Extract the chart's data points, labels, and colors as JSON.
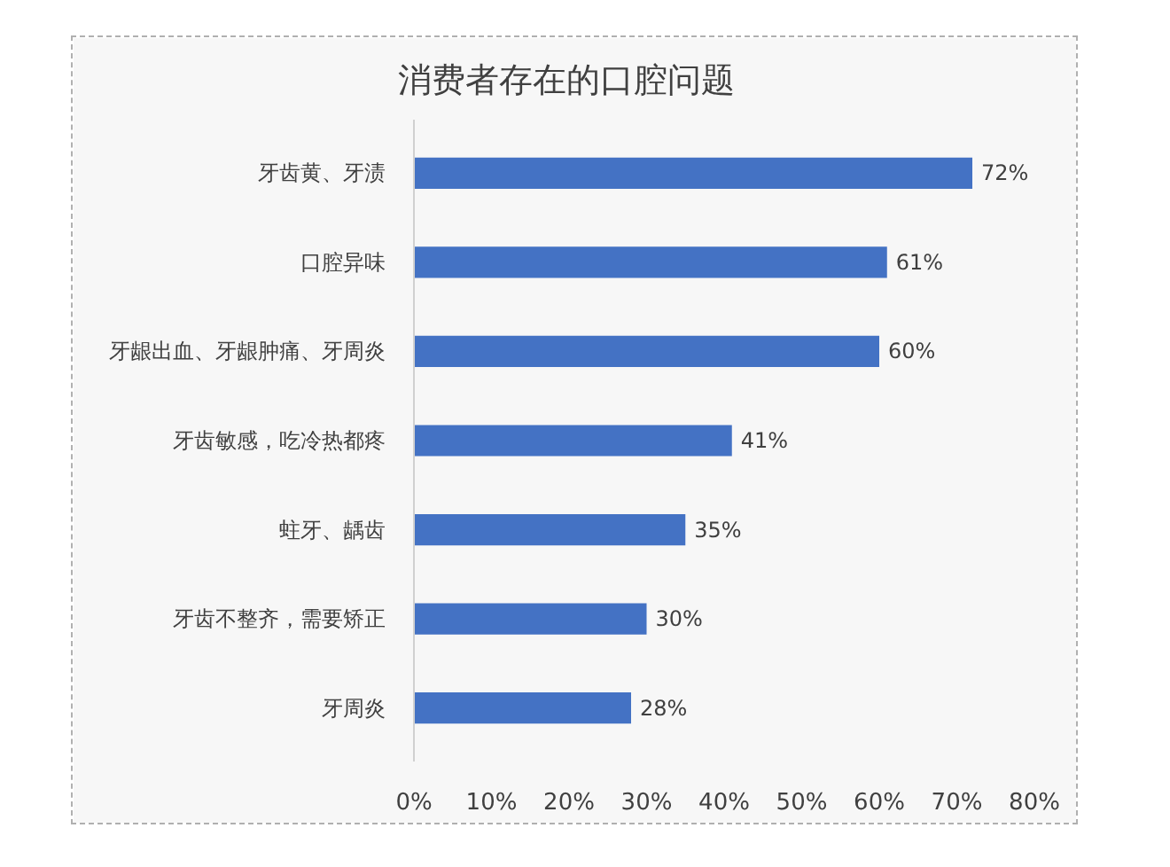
{
  "chart_data": {
    "type": "bar",
    "orientation": "horizontal",
    "title": "消费者存在的口腔问题",
    "categories": [
      "牙齿黄、牙渍",
      "口腔异味",
      "牙龈出血、牙龈肿痛、牙周炎",
      "牙齿敏感，吃冷热都疼",
      "蛀牙、龋齿",
      "牙齿不整齐，需要矫正",
      "牙周炎"
    ],
    "values": [
      72,
      61,
      60,
      41,
      35,
      30,
      28
    ],
    "value_labels": [
      "72%",
      "61%",
      "60%",
      "41%",
      "35%",
      "30%",
      "28%"
    ],
    "color": "#4472c4",
    "xlim": [
      0,
      80
    ],
    "xticks": [
      {
        "value": 0,
        "label": "0%"
      },
      {
        "value": 10,
        "label": "10%"
      },
      {
        "value": 20,
        "label": "20%"
      },
      {
        "value": 30,
        "label": "30%"
      },
      {
        "value": 40,
        "label": "40%"
      },
      {
        "value": 50,
        "label": "50%"
      },
      {
        "value": 60,
        "label": "60%"
      },
      {
        "value": 70,
        "label": "70%"
      },
      {
        "value": 80,
        "label": "80%"
      }
    ]
  }
}
